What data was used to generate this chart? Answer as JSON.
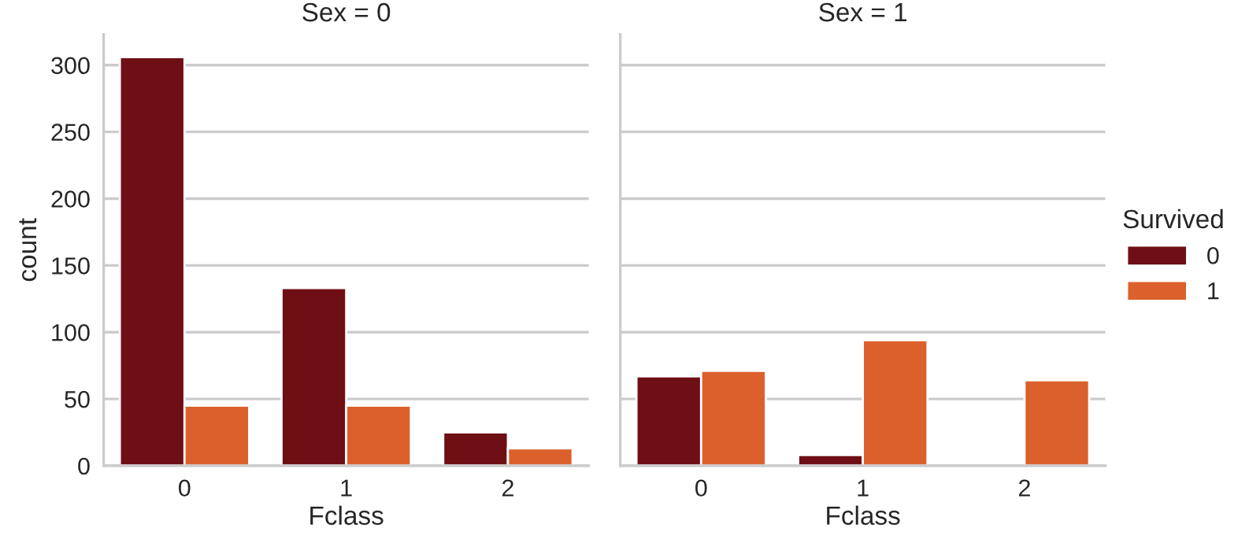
{
  "chart_data": [
    {
      "type": "bar",
      "title": "Sex = 0",
      "xlabel": "Fclass",
      "ylabel": "count",
      "categories": [
        "0",
        "1",
        "2"
      ],
      "legend_title": "Survived",
      "legend": "right",
      "grid": "y",
      "ylim": [
        0,
        323
      ],
      "yticks": [
        0,
        50,
        100,
        150,
        200,
        250,
        300
      ],
      "series": [
        {
          "name": "0",
          "color": "#6e0f15",
          "values": [
            306,
            133,
            25
          ]
        },
        {
          "name": "1",
          "color": "#dc602c",
          "values": [
            45,
            45,
            13
          ]
        }
      ]
    },
    {
      "type": "bar",
      "title": "Sex = 1",
      "xlabel": "Fclass",
      "categories": [
        "0",
        "1",
        "2"
      ],
      "grid": "y",
      "ylim": [
        0,
        323
      ],
      "yticks": [
        0,
        50,
        100,
        150,
        200,
        250,
        300
      ],
      "tick_labels": "x",
      "series": [
        {
          "name": "0",
          "color": "#6e0f15",
          "values": [
            67,
            8,
            null
          ]
        },
        {
          "name": "1",
          "color": "#dc602c",
          "values": [
            71,
            94,
            64
          ]
        }
      ]
    }
  ]
}
